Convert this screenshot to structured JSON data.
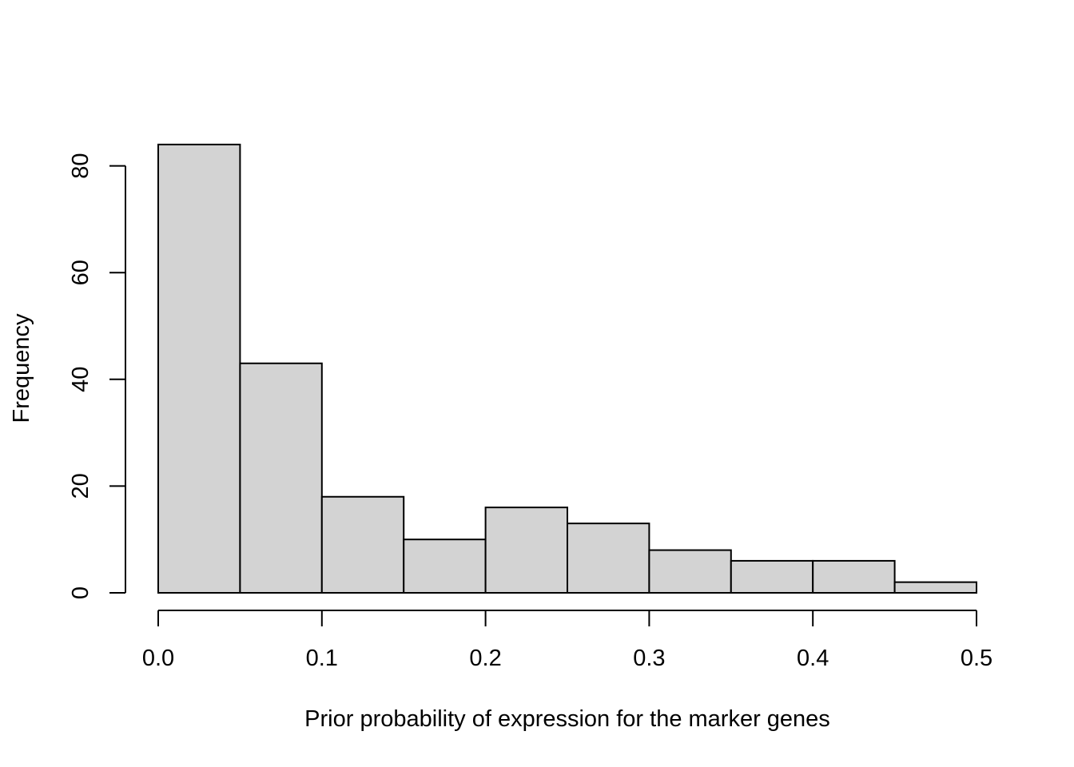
{
  "chart_data": {
    "type": "bar",
    "title": "",
    "xlabel": "Prior probability of expression for the marker genes",
    "ylabel": "Frequency",
    "bins": [
      {
        "start": 0.0,
        "end": 0.05,
        "count": 84
      },
      {
        "start": 0.05,
        "end": 0.1,
        "count": 43
      },
      {
        "start": 0.1,
        "end": 0.15,
        "count": 18
      },
      {
        "start": 0.15,
        "end": 0.2,
        "count": 10
      },
      {
        "start": 0.2,
        "end": 0.25,
        "count": 16
      },
      {
        "start": 0.25,
        "end": 0.3,
        "count": 13
      },
      {
        "start": 0.3,
        "end": 0.35,
        "count": 8
      },
      {
        "start": 0.35,
        "end": 0.4,
        "count": 6
      },
      {
        "start": 0.4,
        "end": 0.45,
        "count": 6
      },
      {
        "start": 0.45,
        "end": 0.5,
        "count": 2
      }
    ],
    "xlim": [
      0,
      0.5
    ],
    "ylim": [
      0,
      84
    ],
    "x_ticks": [
      "0.0",
      "0.1",
      "0.2",
      "0.3",
      "0.4",
      "0.5"
    ],
    "y_ticks": [
      "0",
      "20",
      "40",
      "60",
      "80"
    ],
    "grid": false,
    "legend": "none",
    "bar_fill": "#d3d3d3",
    "bar_stroke": "#000000"
  }
}
